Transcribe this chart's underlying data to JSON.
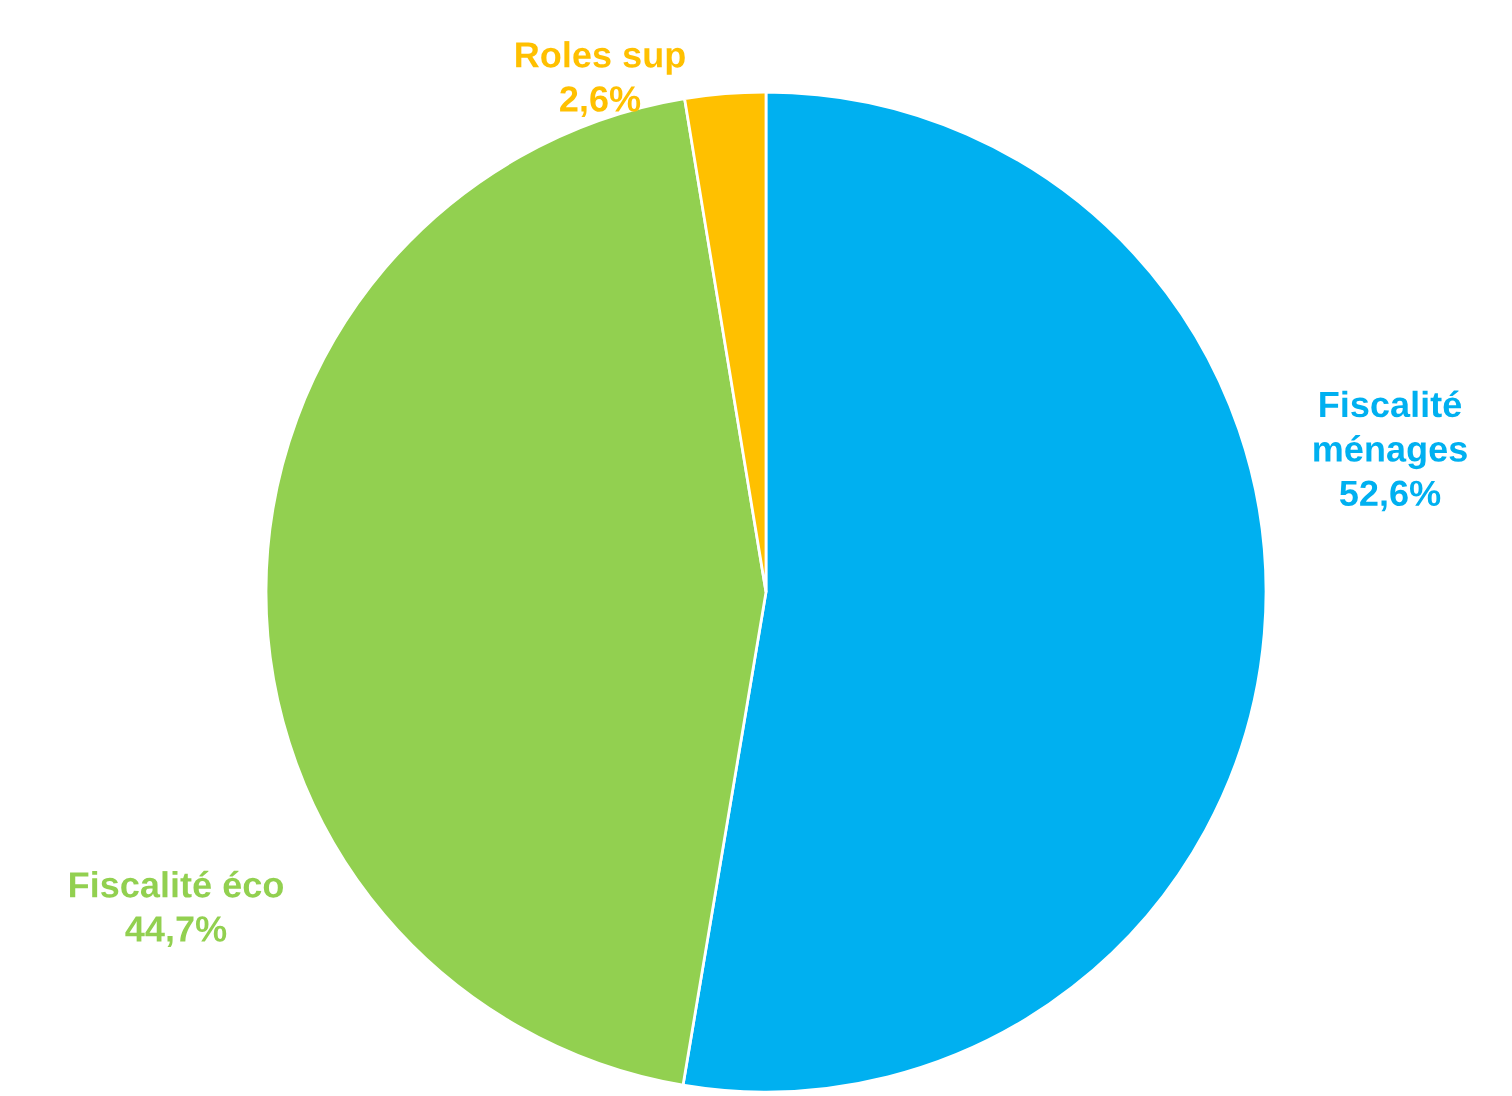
{
  "chart_data": {
    "type": "pie",
    "categories": [
      "Fiscalité ménages",
      "Fiscalité éco",
      "Roles sup"
    ],
    "values": [
      52.6,
      44.7,
      2.6
    ],
    "colors": [
      "#00b0f0",
      "#92d050",
      "#ffc000"
    ],
    "value_labels": [
      "52,6%",
      "44,7%",
      "2,6%"
    ],
    "legend": false
  }
}
